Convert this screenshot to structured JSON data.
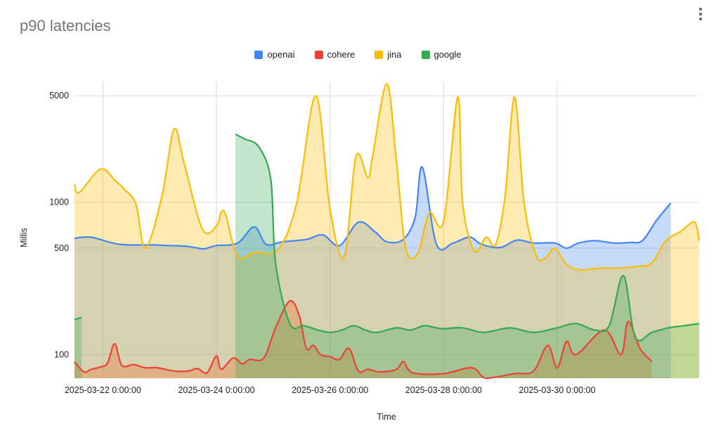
{
  "chart_data": {
    "type": "area",
    "title": "p90 latencies",
    "xlabel": "Time",
    "ylabel": "Millis",
    "y_scale": "log",
    "ylim": [
      70,
      6200
    ],
    "xlim": [
      "2025-03-21 12:00",
      "2025-04-01 12:00"
    ],
    "y_ticks": [
      100,
      500,
      1000,
      5000
    ],
    "y_tick_labels": [
      "100",
      "500",
      "1000",
      "5000"
    ],
    "x_ticks": [
      "2025-03-22 00:00",
      "2025-03-24 00:00",
      "2025-03-26 00:00",
      "2025-03-28 00:00",
      "2025-03-30 00:00"
    ],
    "x_tick_labels": [
      "2025-03-22 0:00:00",
      "2025-03-24 0:00:00",
      "2025-03-26 0:00:00",
      "2025-03-28 0:00:00",
      "2025-03-30 0:00:00"
    ],
    "grid": true,
    "legend_position": "top",
    "series": [
      {
        "name": "openai",
        "color": "#4285f4",
        "points": [
          [
            "2025-03-21 12:00",
            580
          ],
          [
            "2025-03-21 19:00",
            590
          ],
          [
            "2025-03-22 07:00",
            530
          ],
          [
            "2025-03-22 21:00",
            525
          ],
          [
            "2025-03-23 04:00",
            520
          ],
          [
            "2025-03-23 11:00",
            515
          ],
          [
            "2025-03-23 18:00",
            495
          ],
          [
            "2025-03-23 20:00",
            500
          ],
          [
            "2025-03-24 00:00",
            520
          ],
          [
            "2025-03-24 09:00",
            540
          ],
          [
            "2025-03-24 16:00",
            690
          ],
          [
            "2025-03-24 21:00",
            530
          ],
          [
            "2025-03-25 04:00",
            550
          ],
          [
            "2025-03-25 14:00",
            570
          ],
          [
            "2025-03-25 21:00",
            610
          ],
          [
            "2025-03-26 04:00",
            520
          ],
          [
            "2025-03-26 12:00",
            740
          ],
          [
            "2025-03-26 19:00",
            640
          ],
          [
            "2025-03-27 00:00",
            550
          ],
          [
            "2025-03-27 07:00",
            570
          ],
          [
            "2025-03-27 12:00",
            800
          ],
          [
            "2025-03-27 15:00",
            1700
          ],
          [
            "2025-03-27 21:00",
            530
          ],
          [
            "2025-03-28 04:00",
            540
          ],
          [
            "2025-03-28 11:00",
            590
          ],
          [
            "2025-03-28 16:00",
            530
          ],
          [
            "2025-03-29 00:00",
            505
          ],
          [
            "2025-03-29 07:00",
            565
          ],
          [
            "2025-03-29 14:00",
            540
          ],
          [
            "2025-03-29 23:00",
            540
          ],
          [
            "2025-03-30 04:00",
            500
          ],
          [
            "2025-03-30 09:00",
            540
          ],
          [
            "2025-03-30 16:00",
            560
          ],
          [
            "2025-03-31 00:00",
            540
          ],
          [
            "2025-03-31 07:00",
            545
          ],
          [
            "2025-03-31 12:00",
            560
          ],
          [
            "2025-03-31 18:00",
            760
          ],
          [
            "2025-04-01 00:00",
            990
          ]
        ]
      },
      {
        "name": "cohere",
        "color": "#ea4335",
        "points": [
          [
            "2025-03-21 12:00",
            90
          ],
          [
            "2025-03-21 16:00",
            77
          ],
          [
            "2025-03-21 19:00",
            80
          ],
          [
            "2025-03-21 23:00",
            83
          ],
          [
            "2025-03-22 02:00",
            88
          ],
          [
            "2025-03-22 05:00",
            118
          ],
          [
            "2025-03-22 08:00",
            85
          ],
          [
            "2025-03-22 13:00",
            86
          ],
          [
            "2025-03-22 18:00",
            82
          ],
          [
            "2025-03-22 23:00",
            82
          ],
          [
            "2025-03-23 06:00",
            78
          ],
          [
            "2025-03-23 12:00",
            78
          ],
          [
            "2025-03-23 16:00",
            81
          ],
          [
            "2025-03-23 20:00",
            76
          ],
          [
            "2025-03-24 00:00",
            98
          ],
          [
            "2025-03-24 02:00",
            80
          ],
          [
            "2025-03-24 07:00",
            95
          ],
          [
            "2025-03-24 11:00",
            87
          ],
          [
            "2025-03-24 14:00",
            93
          ],
          [
            "2025-03-24 20:00",
            95
          ],
          [
            "2025-03-25 01:00",
            150
          ],
          [
            "2025-03-25 07:00",
            225
          ],
          [
            "2025-03-25 11:00",
            180
          ],
          [
            "2025-03-25 14:00",
            110
          ],
          [
            "2025-03-25 17:00",
            115
          ],
          [
            "2025-03-25 20:00",
            100
          ],
          [
            "2025-03-26 00:00",
            97
          ],
          [
            "2025-03-26 04:00",
            93
          ],
          [
            "2025-03-26 08:00",
            110
          ],
          [
            "2025-03-26 12:00",
            78
          ],
          [
            "2025-03-26 16:00",
            80
          ],
          [
            "2025-03-26 21:00",
            77
          ],
          [
            "2025-03-27 04:00",
            80
          ],
          [
            "2025-03-27 07:00",
            90
          ],
          [
            "2025-03-27 11:00",
            76
          ],
          [
            "2025-03-28 00:00",
            75
          ],
          [
            "2025-03-28 12:00",
            82
          ],
          [
            "2025-03-28 18:00",
            70
          ],
          [
            "2025-03-29 06:00",
            75
          ],
          [
            "2025-03-29 14:00",
            78
          ],
          [
            "2025-03-29 20:00",
            115
          ],
          [
            "2025-03-30 00:00",
            82
          ],
          [
            "2025-03-30 04:00",
            122
          ],
          [
            "2025-03-30 08:00",
            100
          ],
          [
            "2025-03-30 20:00",
            145
          ],
          [
            "2025-03-31 03:00",
            100
          ],
          [
            "2025-03-31 06:00",
            165
          ],
          [
            "2025-03-31 11:00",
            110
          ],
          [
            "2025-03-31 16:00",
            90
          ]
        ]
      },
      {
        "name": "jina",
        "color": "#fbbc04",
        "points": [
          [
            "2025-03-21 12:00",
            1310
          ],
          [
            "2025-03-21 14:00",
            1160
          ],
          [
            "2025-03-21 23:00",
            1650
          ],
          [
            "2025-03-22 05:00",
            1400
          ],
          [
            "2025-03-22 09:00",
            1220
          ],
          [
            "2025-03-22 14:00",
            970
          ],
          [
            "2025-03-22 18:00",
            500
          ],
          [
            "2025-03-23 01:00",
            1100
          ],
          [
            "2025-03-23 06:00",
            3000
          ],
          [
            "2025-03-23 10:00",
            1900
          ],
          [
            "2025-03-23 18:00",
            670
          ],
          [
            "2025-03-24 00:00",
            700
          ],
          [
            "2025-03-24 02:00",
            860
          ],
          [
            "2025-03-24 04:00",
            820
          ],
          [
            "2025-03-24 09:00",
            440
          ],
          [
            "2025-03-24 16:00",
            470
          ],
          [
            "2025-03-25 02:00",
            490
          ],
          [
            "2025-03-25 10:00",
            1000
          ],
          [
            "2025-03-25 18:00",
            5000
          ],
          [
            "2025-03-26 00:00",
            900
          ],
          [
            "2025-03-26 06:00",
            440
          ],
          [
            "2025-03-26 11:00",
            2000
          ],
          [
            "2025-03-26 16:00",
            1450
          ],
          [
            "2025-03-26 18:00",
            2000
          ],
          [
            "2025-03-27 00:00",
            6000
          ],
          [
            "2025-03-27 04:00",
            1900
          ],
          [
            "2025-03-27 08:00",
            500
          ],
          [
            "2025-03-27 13:00",
            460
          ],
          [
            "2025-03-27 18:00",
            850
          ],
          [
            "2025-03-28 00:00",
            750
          ],
          [
            "2025-03-28 06:00",
            4900
          ],
          [
            "2025-03-28 08:00",
            1000
          ],
          [
            "2025-03-28 13:00",
            480
          ],
          [
            "2025-03-28 18:00",
            590
          ],
          [
            "2025-03-28 22:00",
            530
          ],
          [
            "2025-03-29 02:00",
            1100
          ],
          [
            "2025-03-29 06:00",
            4900
          ],
          [
            "2025-03-29 10:00",
            1000
          ],
          [
            "2025-03-29 15:00",
            450
          ],
          [
            "2025-03-29 19:00",
            430
          ],
          [
            "2025-03-29 23:00",
            500
          ],
          [
            "2025-03-30 04:00",
            390
          ],
          [
            "2025-03-30 10:00",
            360
          ],
          [
            "2025-03-30 18:00",
            370
          ],
          [
            "2025-03-31 02:00",
            370
          ],
          [
            "2025-03-31 10:00",
            380
          ],
          [
            "2025-03-31 16:00",
            400
          ],
          [
            "2025-03-31 22:00",
            560
          ],
          [
            "2025-04-01 04:00",
            640
          ],
          [
            "2025-04-01 10:00",
            740
          ],
          [
            "2025-04-01 12:00",
            560
          ]
        ]
      },
      {
        "name": "google",
        "color": "#34a853",
        "points": [
          [
            "2025-03-21 12:00",
            170
          ],
          [
            "2025-03-21 15:00",
            175
          ],
          [
            "2025-03-24 08:00",
            2800
          ],
          [
            "2025-03-24 12:00",
            2600
          ],
          [
            "2025-03-24 18:00",
            2300
          ],
          [
            "2025-03-24 23:00",
            1400
          ],
          [
            "2025-03-25 01:00",
            400
          ],
          [
            "2025-03-25 07:00",
            160
          ],
          [
            "2025-03-25 13:00",
            155
          ],
          [
            "2025-03-25 19:00",
            145
          ],
          [
            "2025-03-26 00:00",
            140
          ],
          [
            "2025-03-26 05:00",
            145
          ],
          [
            "2025-03-26 10:00",
            155
          ],
          [
            "2025-03-26 15:00",
            145
          ],
          [
            "2025-03-26 20:00",
            140
          ],
          [
            "2025-03-27 04:00",
            150
          ],
          [
            "2025-03-27 10:00",
            145
          ],
          [
            "2025-03-27 16:00",
            155
          ],
          [
            "2025-03-27 23:00",
            148
          ],
          [
            "2025-03-28 08:00",
            150
          ],
          [
            "2025-03-28 17:00",
            140
          ],
          [
            "2025-03-29 04:00",
            150
          ],
          [
            "2025-03-29 14:00",
            140
          ],
          [
            "2025-03-30 00:00",
            150
          ],
          [
            "2025-03-30 08:00",
            160
          ],
          [
            "2025-03-30 16:00",
            145
          ],
          [
            "2025-03-30 22:00",
            155
          ],
          [
            "2025-03-31 04:00",
            330
          ],
          [
            "2025-03-31 09:00",
            130
          ],
          [
            "2025-03-31 16:00",
            140
          ],
          [
            "2025-03-31 23:00",
            150
          ],
          [
            "2025-04-01 06:00",
            155
          ],
          [
            "2025-04-01 12:00",
            160
          ]
        ]
      }
    ]
  }
}
